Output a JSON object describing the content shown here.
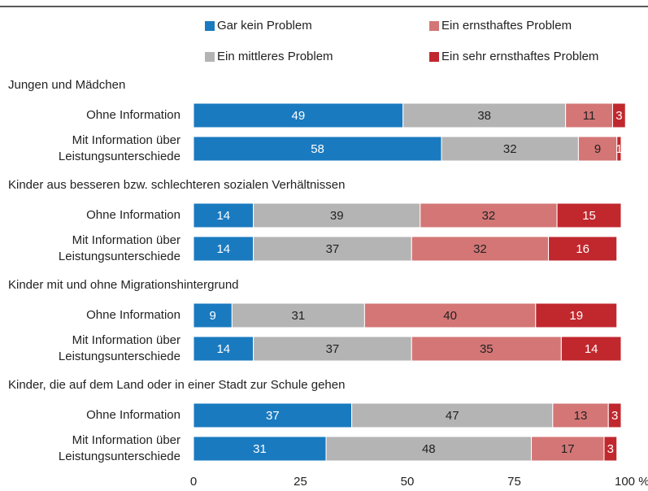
{
  "chart_data": {
    "type": "bar",
    "orientation": "horizontal",
    "stacked": true,
    "groups": [
      "Jungen und Mädchen",
      "Kinder aus besseren bzw. schlechteren sozialen Verhältnissen",
      "Kinder mit und ohne Migrationshintergrund",
      "Kinder, die auf dem Land oder in einer Stadt zur Schule gehen"
    ],
    "categories": [
      "Ohne Information",
      "Mit Information über\nLeistungsunterschiede",
      "Ohne Information",
      "Mit Information über\nLeistungsunterschiede",
      "Ohne Information",
      "Mit Information über\nLeistungsunterschiede",
      "Ohne Information",
      "Mit Information über\nLeistungsunterschiede"
    ],
    "series": [
      {
        "name": "Gar kein Problem",
        "color": "#1a7abf",
        "values": [
          49,
          58,
          14,
          14,
          9,
          14,
          37,
          31
        ]
      },
      {
        "name": "Ein mittleres Problem",
        "color": "#b4b4b4",
        "values": [
          38,
          32,
          39,
          37,
          31,
          37,
          47,
          48
        ]
      },
      {
        "name": "Ein ernsthaftes Problem",
        "color": "#d47676",
        "values": [
          11,
          9,
          32,
          32,
          40,
          35,
          13,
          17
        ]
      },
      {
        "name": "Ein sehr ernsthaftes Problem",
        "color": "#c0282e",
        "values": [
          3,
          1,
          15,
          16,
          19,
          14,
          3,
          3
        ]
      }
    ],
    "xlim": [
      0,
      100
    ],
    "xticks": [
      0,
      25,
      50,
      75,
      {
        "value": 100,
        "label": "100 %"
      }
    ]
  }
}
